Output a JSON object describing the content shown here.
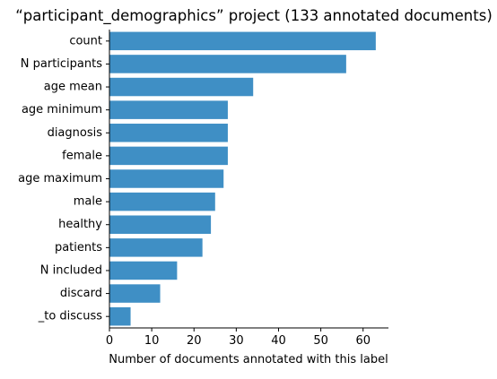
{
  "chart_data": {
    "type": "bar",
    "orientation": "horizontal",
    "title": "“participant_demographics” project (133 annotated documents)",
    "xlabel": "Number of documents annotated with this label",
    "ylabel": "",
    "xlim": [
      0,
      66
    ],
    "x_ticks": [
      0,
      10,
      20,
      30,
      40,
      50,
      60
    ],
    "categories": [
      "count",
      "N participants",
      "age mean",
      "age minimum",
      "diagnosis",
      "female",
      "age maximum",
      "male",
      "healthy",
      "patients",
      "N included",
      "discard",
      "_to discuss"
    ],
    "values": [
      63,
      56,
      34,
      28,
      28,
      28,
      27,
      25,
      24,
      22,
      16,
      12,
      5
    ],
    "bar_color": "#3f8fc5",
    "grid": false
  }
}
